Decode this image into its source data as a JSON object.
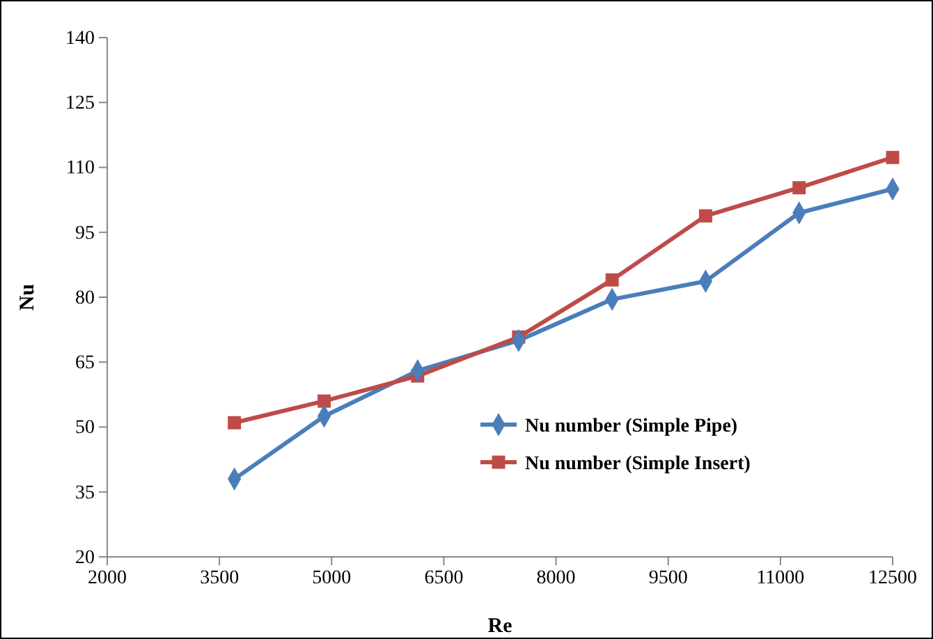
{
  "chart_data": {
    "type": "line",
    "xlabel": "Re",
    "ylabel": "Nu",
    "x": [
      3700,
      4900,
      6150,
      7500,
      8750,
      10000,
      11250,
      12500
    ],
    "series": [
      {
        "name": "Nu number (Simple Pipe)",
        "color": "#4a7ebb",
        "marker": "diamond",
        "values": [
          38,
          52.5,
          63,
          70,
          79.5,
          83.7,
          99.5,
          105
        ]
      },
      {
        "name": "Nu number (Simple Insert)",
        "color": "#be4b48",
        "marker": "square",
        "values": [
          51,
          56,
          61.8,
          70.8,
          84,
          98.8,
          105.3,
          112.3
        ]
      }
    ],
    "xlim": [
      2000,
      12500
    ],
    "xticks": [
      2000,
      3500,
      5000,
      6500,
      8000,
      9500,
      11000,
      12500
    ],
    "ylim": [
      20,
      140
    ],
    "yticks": [
      20,
      35,
      50,
      65,
      80,
      95,
      110,
      125,
      140
    ],
    "grid": false,
    "legend": "right",
    "line_style": "solid"
  }
}
